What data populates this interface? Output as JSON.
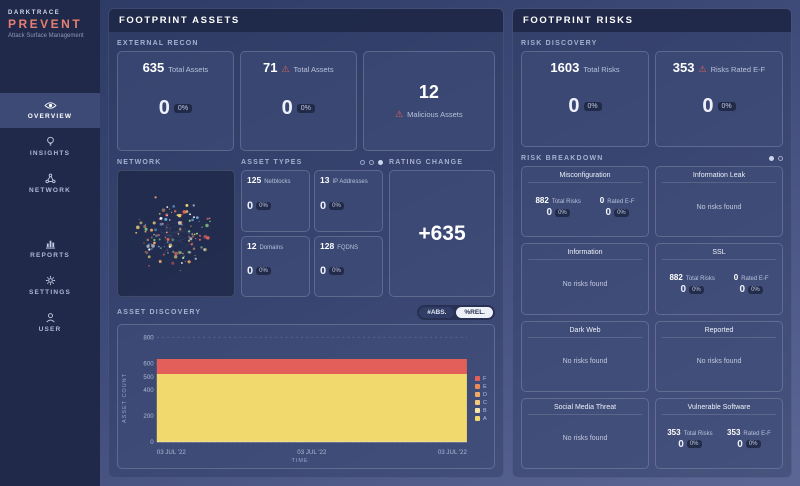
{
  "theme": {
    "accent_red": "#e0635c",
    "sidebar_bg": "#20294a",
    "panel_header_bg": "#1e2746",
    "network_dot_colors": [
      "#8fd18a",
      "#f2d973",
      "#e2645c",
      "#6fa8dc",
      "#ffffff",
      "#f0a968"
    ]
  },
  "sidebar": {
    "brand": "DARKTRACE",
    "product": "PREVENT",
    "tagline": "Attack Surface Management",
    "items": [
      {
        "label": "OVERVIEW",
        "active": true
      },
      {
        "label": "INSIGHTS",
        "active": false
      },
      {
        "label": "NETWORK",
        "active": false
      },
      {
        "label": "REPORTS",
        "active": false
      },
      {
        "label": "SETTINGS",
        "active": false
      },
      {
        "label": "USER",
        "active": false
      }
    ]
  },
  "assets_panel": {
    "title": "FOOTPRINT ASSETS",
    "external_recon": {
      "label": "EXTERNAL RECON",
      "cards": [
        {
          "value": "635",
          "label": "Total Assets",
          "delta": "0",
          "delta_pct": "0%"
        },
        {
          "value": "71",
          "label": "Total Assets",
          "warning": true,
          "delta": "0",
          "delta_pct": "0%"
        },
        {
          "value": "12",
          "label": "Malicious Assets",
          "warning": true
        }
      ]
    },
    "network_label": "NETWORK",
    "asset_types": {
      "label": "ASSET TYPES",
      "cards": [
        {
          "value": "125",
          "label": "Netblocks",
          "delta": "0",
          "delta_pct": "0%"
        },
        {
          "value": "13",
          "label": "IP Addresses",
          "delta": "0",
          "delta_pct": "0%"
        },
        {
          "value": "12",
          "label": "Domains",
          "delta": "0",
          "delta_pct": "0%"
        },
        {
          "value": "128",
          "label": "FQDNS",
          "delta": "0",
          "delta_pct": "0%"
        }
      ]
    },
    "rating_change": {
      "label": "RATING CHANGE",
      "value": "+635"
    },
    "asset_discovery": {
      "label": "ASSET DISCOVERY",
      "toggle_abs": "#ABS.",
      "toggle_rel": "%REL."
    }
  },
  "risks_panel": {
    "title": "FOOTPRINT RISKS",
    "risk_discovery": {
      "label": "RISK DISCOVERY",
      "cards": [
        {
          "value": "1603",
          "label": "Total Risks",
          "delta": "0",
          "delta_pct": "0%"
        },
        {
          "value": "353",
          "label": "Risks Rated E-F",
          "warning": true,
          "delta": "0",
          "delta_pct": "0%"
        }
      ]
    },
    "risk_breakdown": {
      "label": "RISK BREAKDOWN",
      "cards": [
        {
          "title": "Misconfiguration",
          "stats": [
            {
              "value": "882",
              "label": "Total Risks",
              "delta": "0",
              "delta_pct": "0%"
            },
            {
              "value": "0",
              "label": "Rated E-F",
              "delta": "0",
              "delta_pct": "0%"
            }
          ]
        },
        {
          "title": "Information Leak",
          "empty": "No risks found"
        },
        {
          "title": "Information",
          "empty": "No risks found"
        },
        {
          "title": "SSL",
          "stats": [
            {
              "value": "882",
              "label": "Total Risks",
              "delta": "0",
              "delta_pct": "0%"
            },
            {
              "value": "0",
              "label": "Rated E-F",
              "delta": "0",
              "delta_pct": "0%"
            }
          ]
        },
        {
          "title": "Dark Web",
          "empty": "No risks found"
        },
        {
          "title": "Reported",
          "empty": "No risks found"
        },
        {
          "title": "Social Media Threat",
          "empty": "No risks found"
        },
        {
          "title": "Vulnerable Software",
          "stats": [
            {
              "value": "353",
              "label": "Total Risks",
              "delta": "0",
              "delta_pct": "0%"
            },
            {
              "value": "353",
              "label": "Rated E-F",
              "delta": "0",
              "delta_pct": "0%"
            }
          ]
        }
      ]
    }
  },
  "chart_data": {
    "type": "area",
    "title": "ASSET DISCOVERY",
    "xlabel": "TIME",
    "ylabel": "ASSET COUNT",
    "x": [
      "03 JUL '22",
      "03 JUL '22",
      "03 JUL '22"
    ],
    "ylim": [
      0,
      800
    ],
    "yticks": [
      0,
      200,
      400,
      500,
      600,
      800
    ],
    "grid": true,
    "legend_position": "right",
    "series": [
      {
        "name": "F",
        "color": "#e25f5a",
        "values": [
          115,
          115,
          115
        ]
      },
      {
        "name": "E",
        "color": "#ea8a58",
        "values": [
          0,
          0,
          0
        ]
      },
      {
        "name": "D",
        "color": "#f0a964",
        "values": [
          0,
          0,
          0
        ]
      },
      {
        "name": "C",
        "color": "#f4c87c",
        "values": [
          0,
          0,
          0
        ]
      },
      {
        "name": "B",
        "color": "#f8e3a8",
        "values": [
          0,
          0,
          0
        ]
      },
      {
        "name": "A",
        "color": "#f1d96e",
        "values": [
          520,
          520,
          520
        ]
      }
    ]
  }
}
